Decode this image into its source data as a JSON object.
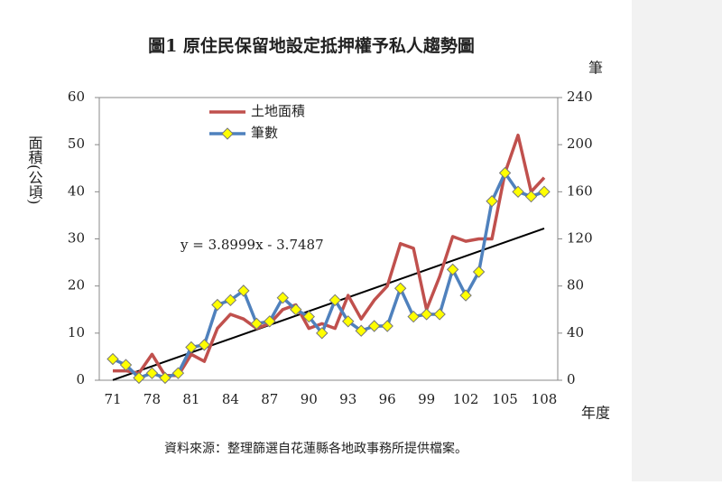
{
  "chart_data": {
    "type": "line",
    "title": "圖1 原住民保留地設定抵押權予私人趨勢圖",
    "ylabel": "面積(公頃)",
    "y2label": "筆",
    "xlabel": "年度",
    "source": "資料來源：整理篩選自花蓮縣各地政事務所提供檔案。",
    "categories": [
      "71",
      null,
      null,
      "78",
      null,
      null,
      "81",
      null,
      null,
      "84",
      null,
      null,
      "87",
      null,
      null,
      "90",
      null,
      null,
      "93",
      null,
      null,
      "96",
      null,
      null,
      "99",
      null,
      null,
      "102",
      null,
      null,
      "105",
      null,
      null,
      "108"
    ],
    "series": [
      {
        "name": "土地面積",
        "color": "#c0504d",
        "axis": "y",
        "values": [
          2,
          2,
          1.5,
          5.5,
          1,
          1,
          5.5,
          4,
          11,
          14,
          13,
          11,
          12,
          15,
          16,
          11,
          12,
          11,
          18,
          13,
          17,
          20,
          29,
          28,
          15,
          22,
          30.5,
          29.5,
          30,
          30,
          44,
          52,
          40,
          43
        ]
      },
      {
        "name": "筆數",
        "color": "#4f81bd",
        "marker_color": "#ffff00",
        "axis": "y2",
        "values": [
          18,
          13,
          2,
          6,
          2,
          6,
          28,
          30,
          64,
          68,
          76,
          48,
          50,
          70,
          60,
          54,
          40,
          68,
          50,
          42,
          46,
          46,
          78,
          54,
          56,
          56,
          94,
          72,
          92,
          152,
          176,
          160,
          156,
          160
        ]
      }
    ],
    "trendline": {
      "slope": 3.8999,
      "intercept": -3.7487,
      "label": "y = 3.8999x - 3.7487",
      "axis": "y2",
      "color": "#000000"
    },
    "ylim": [
      0,
      60
    ],
    "yticks": [
      0,
      10,
      20,
      30,
      40,
      50,
      60
    ],
    "y2lim": [
      0,
      240
    ],
    "y2ticks": [
      0,
      40,
      80,
      120,
      160,
      200,
      240
    ],
    "legend": "top"
  }
}
